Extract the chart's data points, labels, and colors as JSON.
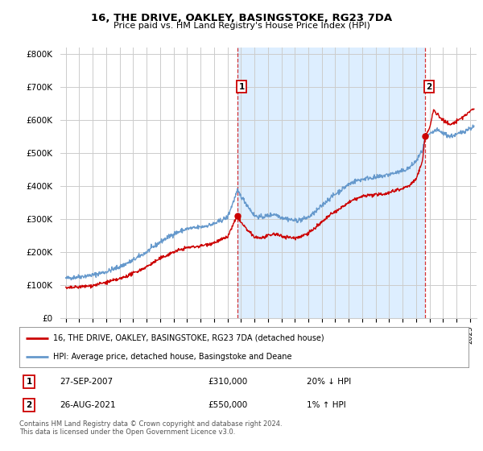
{
  "title": "16, THE DRIVE, OAKLEY, BASINGSTOKE, RG23 7DA",
  "subtitle": "Price paid vs. HM Land Registry's House Price Index (HPI)",
  "ylabel_ticks": [
    "£0",
    "£100K",
    "£200K",
    "£300K",
    "£400K",
    "£500K",
    "£600K",
    "£700K",
    "£800K"
  ],
  "ytick_values": [
    0,
    100000,
    200000,
    300000,
    400000,
    500000,
    600000,
    700000,
    800000
  ],
  "ylim": [
    0,
    820000
  ],
  "xlim_start": 1994.6,
  "xlim_end": 2025.5,
  "marker1_x": 2007.74,
  "marker1_y": 310000,
  "marker2_x": 2021.65,
  "marker2_y": 550000,
  "legend_entry1": "16, THE DRIVE, OAKLEY, BASINGSTOKE, RG23 7DA (detached house)",
  "legend_entry2": "HPI: Average price, detached house, Basingstoke and Deane",
  "table_row1": [
    "1",
    "27-SEP-2007",
    "£310,000",
    "20% ↓ HPI"
  ],
  "table_row2": [
    "2",
    "26-AUG-2021",
    "£550,000",
    "1% ↑ HPI"
  ],
  "footer": "Contains HM Land Registry data © Crown copyright and database right 2024.\nThis data is licensed under the Open Government Licence v3.0.",
  "house_color": "#cc0000",
  "hpi_color": "#6699cc",
  "hpi_fill_color": "#ddeeff",
  "background_color": "#ffffff",
  "plot_bg_color": "#ffffff",
  "highlight_bg_color": "#ddeeff",
  "grid_color": "#cccccc",
  "vline_color": "#cc0000"
}
